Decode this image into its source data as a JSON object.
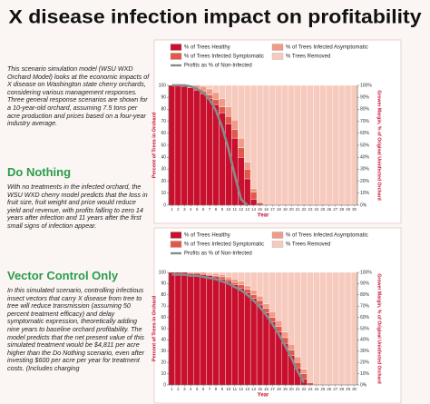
{
  "title": "X disease infection impact on profitability",
  "intro": "This scenario simulation model (WSU WXD Orchard Model) looks at the economic impacts of X disease on Washington state cherry orchards, considering various management responses. Three general response scenarios are shown for a 10-year-old orchard, assuming 7.5 tons per acre production and prices based on a four-year industry average.",
  "sections": [
    {
      "heading": "Do Nothing",
      "body": "With no treatments in the infected orchard, the WSU WXD cherry model predicts that the loss in fruit size, fruit weight and price would reduce yield and revenue, with profits falling to zero 14 years after infection and 11 years after the first small signs of infection appear."
    },
    {
      "heading": "Vector Control Only",
      "body": "In this simulated scenario, controlling infectious insect vectors that carry X disease from tree to tree will reduce transmission (assuming 50 percent treatment efficacy) and delay symptomatic expression, theoretically adding nine years to baseline orchard profitability. The model predicts that the net present value of this simulated treatment would be $4,811 per acre higher than the Do Nothing scenario, even after investing $600 per acre per year for treatment costs. (Includes charging"
    }
  ],
  "chart_data": [
    {
      "type": "bar",
      "xlabel": "Year",
      "ylabel": "Percent of Trees in Orchard",
      "y2label": "Grower Margin, % of Original Uninfected Orchard",
      "x": [
        1,
        2,
        3,
        4,
        5,
        6,
        7,
        8,
        9,
        10,
        11,
        12,
        13,
        14,
        15,
        16,
        17,
        18,
        19,
        20,
        21,
        22,
        23,
        24,
        25,
        26,
        27,
        28,
        29,
        30
      ],
      "xlim": [
        0.5,
        30.5
      ],
      "xticks": [
        1,
        2,
        3,
        4,
        5,
        6,
        7,
        8,
        9,
        10,
        11,
        12,
        13,
        14,
        15,
        16,
        17,
        18,
        19,
        20,
        21,
        22,
        23,
        24,
        25,
        26,
        27,
        28,
        29,
        30
      ],
      "ylim": [
        0,
        100
      ],
      "yticks": [
        0,
        10,
        20,
        30,
        40,
        50,
        60,
        70,
        80,
        90,
        100
      ],
      "y2lim": [
        0,
        100
      ],
      "y2ticks": [
        {
          "value": 0,
          "label": "0%"
        },
        {
          "value": 10,
          "label": "10%"
        },
        {
          "value": 20,
          "label": "20%"
        },
        {
          "value": 30,
          "label": "30%"
        },
        {
          "value": 40,
          "label": "40%"
        },
        {
          "value": 50,
          "label": "50%"
        },
        {
          "value": 60,
          "label": "60%"
        },
        {
          "value": 70,
          "label": "70%"
        },
        {
          "value": 80,
          "label": "80%"
        },
        {
          "value": 90,
          "label": "90%"
        },
        {
          "value": 100,
          "label": "100%"
        }
      ],
      "series": [
        {
          "name": "% of Trees Healthy",
          "color": "#c8102e",
          "values": [
            100,
            100,
            99,
            98,
            96,
            93,
            89,
            84,
            77,
            68,
            56,
            40,
            22,
            5,
            0,
            0,
            0,
            0,
            0,
            0,
            0,
            0,
            0,
            0,
            0,
            0,
            0,
            0,
            0,
            0
          ]
        },
        {
          "name": "% of Trees Infected Symptomatic",
          "color": "#e0584a",
          "values": [
            0,
            0,
            0,
            0,
            1,
            2,
            3,
            4,
            5,
            6,
            7,
            8,
            8,
            6,
            2,
            0,
            0,
            0,
            0,
            0,
            0,
            0,
            0,
            0,
            0,
            0,
            0,
            0,
            0,
            0
          ]
        },
        {
          "name": "% of Trees Infected Asymptomatic",
          "color": "#f09a88",
          "values": [
            0,
            0,
            1,
            2,
            3,
            4,
            5,
            6,
            7,
            8,
            8,
            8,
            6,
            3,
            0,
            0,
            0,
            0,
            0,
            0,
            0,
            0,
            0,
            0,
            0,
            0,
            0,
            0,
            0,
            0
          ]
        },
        {
          "name": "% Trees Removed",
          "color": "#f7cabe",
          "values": [
            0,
            0,
            0,
            0,
            0,
            1,
            3,
            6,
            11,
            18,
            29,
            44,
            64,
            86,
            98,
            100,
            100,
            100,
            100,
            100,
            100,
            100,
            100,
            100,
            100,
            100,
            100,
            100,
            100,
            100
          ]
        },
        {
          "name": "Profits as % of Non-Infected",
          "color": "#8a8a8a",
          "axis": "y2",
          "type": "line",
          "values": [
            100,
            100,
            100,
            99,
            97,
            94,
            88,
            79,
            65,
            47,
            25,
            5,
            0,
            null,
            null,
            null,
            null,
            null,
            null,
            null,
            null,
            null,
            null,
            null,
            null,
            null,
            null,
            null,
            null,
            null
          ]
        }
      ]
    },
    {
      "type": "bar",
      "xlabel": "Year",
      "ylabel": "Percent of Trees in Orchard",
      "y2label": "Grower Margin, % of Original Uninfected Orchard",
      "x": [
        1,
        2,
        3,
        4,
        5,
        6,
        7,
        8,
        9,
        10,
        11,
        12,
        13,
        14,
        15,
        16,
        17,
        18,
        19,
        20,
        21,
        22,
        23,
        24,
        25,
        26,
        27,
        28,
        29,
        30
      ],
      "xlim": [
        0.5,
        30.5
      ],
      "xticks": [
        1,
        2,
        3,
        4,
        5,
        6,
        7,
        8,
        9,
        10,
        11,
        12,
        13,
        14,
        15,
        16,
        17,
        18,
        19,
        20,
        21,
        22,
        23,
        24,
        25,
        26,
        27,
        28,
        29,
        30
      ],
      "ylim": [
        0,
        100
      ],
      "yticks": [
        0,
        10,
        20,
        30,
        40,
        50,
        60,
        70,
        80,
        90,
        100
      ],
      "y2lim": [
        0,
        100
      ],
      "y2ticks": [
        {
          "value": 0,
          "label": "0%"
        },
        {
          "value": 10,
          "label": "10%"
        },
        {
          "value": 20,
          "label": "20%"
        },
        {
          "value": 30,
          "label": "30%"
        },
        {
          "value": 40,
          "label": "40%"
        },
        {
          "value": 50,
          "label": "50%"
        },
        {
          "value": 60,
          "label": "60%"
        },
        {
          "value": 70,
          "label": "70%"
        },
        {
          "value": 80,
          "label": "80%"
        },
        {
          "value": 90,
          "label": "90%"
        },
        {
          "value": 100,
          "label": "100%"
        }
      ],
      "series": [
        {
          "name": "% of Trees Healthy",
          "color": "#c8102e",
          "values": [
            100,
            100,
            100,
            99,
            99,
            98,
            97,
            96,
            94,
            92,
            89,
            86,
            82,
            77,
            71,
            64,
            56,
            47,
            37,
            26,
            15,
            5,
            0,
            0,
            0,
            0,
            0,
            0,
            0,
            0
          ]
        },
        {
          "name": "% of Trees Infected Symptomatic",
          "color": "#e0584a",
          "values": [
            0,
            0,
            0,
            0,
            0,
            1,
            1,
            1,
            2,
            2,
            2,
            3,
            3,
            3,
            4,
            4,
            4,
            5,
            5,
            5,
            5,
            5,
            2,
            0,
            0,
            0,
            0,
            0,
            0,
            0
          ]
        },
        {
          "name": "% of Trees Infected Asymptomatic",
          "color": "#f09a88",
          "values": [
            0,
            0,
            0,
            1,
            1,
            1,
            1,
            2,
            2,
            2,
            3,
            3,
            3,
            4,
            4,
            4,
            5,
            5,
            5,
            5,
            5,
            4,
            0,
            0,
            0,
            0,
            0,
            0,
            0,
            0
          ]
        },
        {
          "name": "% Trees Removed",
          "color": "#f7cabe",
          "values": [
            0,
            0,
            0,
            0,
            0,
            0,
            1,
            1,
            2,
            4,
            6,
            8,
            12,
            16,
            21,
            28,
            35,
            43,
            53,
            64,
            75,
            86,
            98,
            100,
            100,
            100,
            100,
            100,
            100,
            100
          ]
        },
        {
          "name": "Profits as % of Non-Infected",
          "color": "#8a8a8a",
          "axis": "y2",
          "type": "line",
          "values": [
            98,
            98,
            98,
            97,
            97,
            96,
            95,
            94,
            92,
            90,
            87,
            84,
            80,
            75,
            69,
            62,
            54,
            45,
            35,
            24,
            12,
            2,
            null,
            null,
            null,
            null,
            null,
            null,
            null,
            null
          ]
        }
      ]
    }
  ]
}
